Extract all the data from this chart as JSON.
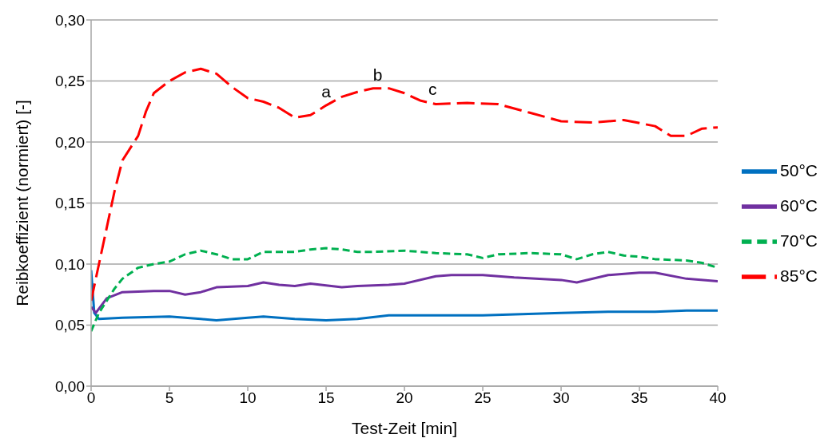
{
  "chart_data": {
    "type": "line",
    "xlabel": "Test-Zeit [min]",
    "ylabel": "Reibkoeffizient (normiert) [-]",
    "xlim": [
      0,
      40
    ],
    "xticks": [
      0,
      5,
      10,
      15,
      20,
      25,
      30,
      35,
      40
    ],
    "ylim": [
      0,
      0.3
    ],
    "yticks": [
      {
        "value": 0,
        "label": "0,00"
      },
      {
        "value": 0.05,
        "label": "0,05"
      },
      {
        "value": 0.1,
        "label": "0,10"
      },
      {
        "value": 0.15,
        "label": "0,15"
      },
      {
        "value": 0.2,
        "label": "0,20"
      },
      {
        "value": 0.25,
        "label": "0,25"
      },
      {
        "value": 0.3,
        "label": "0,30"
      }
    ],
    "grid": "y",
    "legend": "right",
    "marker": "none",
    "annotations": [
      {
        "text": "a",
        "x": 15,
        "y": 0.23
      },
      {
        "text": "b",
        "x": 18.3,
        "y": 0.244
      },
      {
        "text": "c",
        "x": 21.8,
        "y": 0.232
      }
    ],
    "series": [
      {
        "name": "50°C",
        "color": "#0070c0",
        "line_style": "solid",
        "x": [
          0,
          0.2,
          0.5,
          2,
          5,
          7,
          8,
          10,
          11,
          13,
          15,
          17,
          19,
          22,
          25,
          30,
          33,
          36,
          38,
          40
        ],
        "values": [
          0.095,
          0.06,
          0.055,
          0.056,
          0.057,
          0.055,
          0.054,
          0.056,
          0.057,
          0.055,
          0.054,
          0.055,
          0.058,
          0.058,
          0.058,
          0.06,
          0.061,
          0.061,
          0.062,
          0.062
        ]
      },
      {
        "name": "60°C",
        "color": "#7030a0",
        "line_style": "solid",
        "x": [
          0,
          0.3,
          1,
          2,
          4,
          5,
          6,
          7,
          8,
          10,
          11,
          12,
          13,
          14,
          16,
          17,
          19,
          20,
          22,
          23,
          25,
          27,
          30,
          31,
          33,
          35,
          36,
          38,
          40
        ],
        "values": [
          0.065,
          0.06,
          0.072,
          0.077,
          0.078,
          0.078,
          0.075,
          0.077,
          0.081,
          0.082,
          0.085,
          0.083,
          0.082,
          0.084,
          0.081,
          0.082,
          0.083,
          0.084,
          0.09,
          0.091,
          0.091,
          0.089,
          0.087,
          0.085,
          0.091,
          0.093,
          0.093,
          0.088,
          0.086
        ]
      },
      {
        "name": "70°C",
        "color": "#00b050",
        "line_style": "dashed",
        "x": [
          0,
          0.5,
          1,
          1.5,
          2,
          3,
          4,
          5,
          6,
          7,
          8,
          9,
          10,
          11,
          12,
          13,
          14,
          15,
          16,
          17,
          18,
          20,
          22,
          24,
          25,
          26,
          28,
          30,
          31,
          32,
          33,
          34,
          35,
          36,
          38,
          39,
          40
        ],
        "values": [
          0.045,
          0.06,
          0.07,
          0.08,
          0.088,
          0.097,
          0.1,
          0.102,
          0.108,
          0.111,
          0.108,
          0.104,
          0.104,
          0.11,
          0.11,
          0.11,
          0.112,
          0.113,
          0.112,
          0.11,
          0.11,
          0.111,
          0.109,
          0.108,
          0.105,
          0.108,
          0.109,
          0.108,
          0.104,
          0.108,
          0.11,
          0.107,
          0.106,
          0.104,
          0.103,
          0.101,
          0.097
        ]
      },
      {
        "name": "85°C",
        "color": "#ff0000",
        "line_style": "long-dashed",
        "x": [
          0,
          0.5,
          1,
          1.5,
          2,
          3,
          3.5,
          4,
          5,
          6,
          7,
          8,
          9,
          10,
          11,
          12,
          13,
          14,
          15,
          16,
          17,
          18,
          19,
          20,
          21,
          22,
          24,
          26,
          28,
          30,
          32,
          34,
          36,
          37,
          38,
          39,
          40
        ],
        "values": [
          0.07,
          0.1,
          0.13,
          0.16,
          0.185,
          0.205,
          0.225,
          0.24,
          0.25,
          0.257,
          0.26,
          0.256,
          0.245,
          0.236,
          0.233,
          0.228,
          0.22,
          0.222,
          0.23,
          0.237,
          0.241,
          0.244,
          0.244,
          0.24,
          0.234,
          0.231,
          0.232,
          0.231,
          0.224,
          0.217,
          0.216,
          0.218,
          0.213,
          0.205,
          0.205,
          0.211,
          0.212
        ]
      }
    ]
  }
}
